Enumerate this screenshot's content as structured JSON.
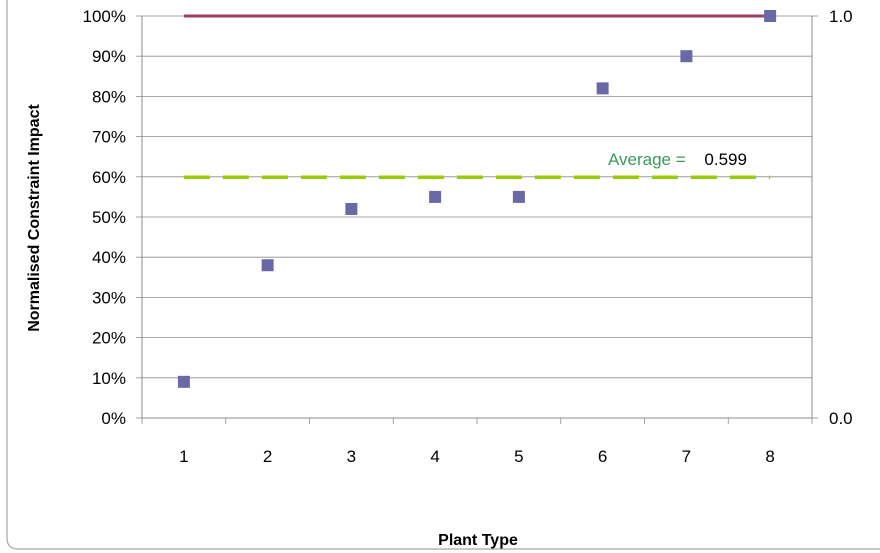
{
  "chart_data": {
    "type": "scatter",
    "xlabel": "Plant Type",
    "ylabel": "Normalised Constraint Impact",
    "x": [
      1,
      2,
      3,
      4,
      5,
      6,
      7,
      8
    ],
    "x_ticks": [
      "1",
      "2",
      "3",
      "4",
      "5",
      "6",
      "7",
      "8"
    ],
    "xlim": [
      0.5,
      8.5
    ],
    "series": [
      {
        "values": [
          0.09,
          0.38,
          0.52,
          0.55,
          0.55,
          0.82,
          0.9,
          1.0
        ],
        "color": "#6b68a8",
        "marker": "square"
      }
    ],
    "reference_lines": [
      {
        "value": 1.0,
        "x_from": 1,
        "x_to": 8,
        "color": "#a23a64",
        "style": "solid"
      },
      {
        "value": 0.599,
        "x_from": 1,
        "x_to": 8,
        "color": "#99cc00",
        "style": "dashed"
      }
    ],
    "ylim": [
      0,
      1
    ],
    "y_ticks": [
      "0%",
      "10%",
      "20%",
      "30%",
      "40%",
      "50%",
      "60%",
      "70%",
      "80%",
      "90%",
      "100%"
    ],
    "y2_ticks": [
      "0.0",
      "1.0"
    ],
    "annotation": {
      "label": "Average =",
      "value": "0.599",
      "label_color": "#3a9a5a",
      "value_color": "#000000"
    },
    "grid": true,
    "legend": "none"
  }
}
